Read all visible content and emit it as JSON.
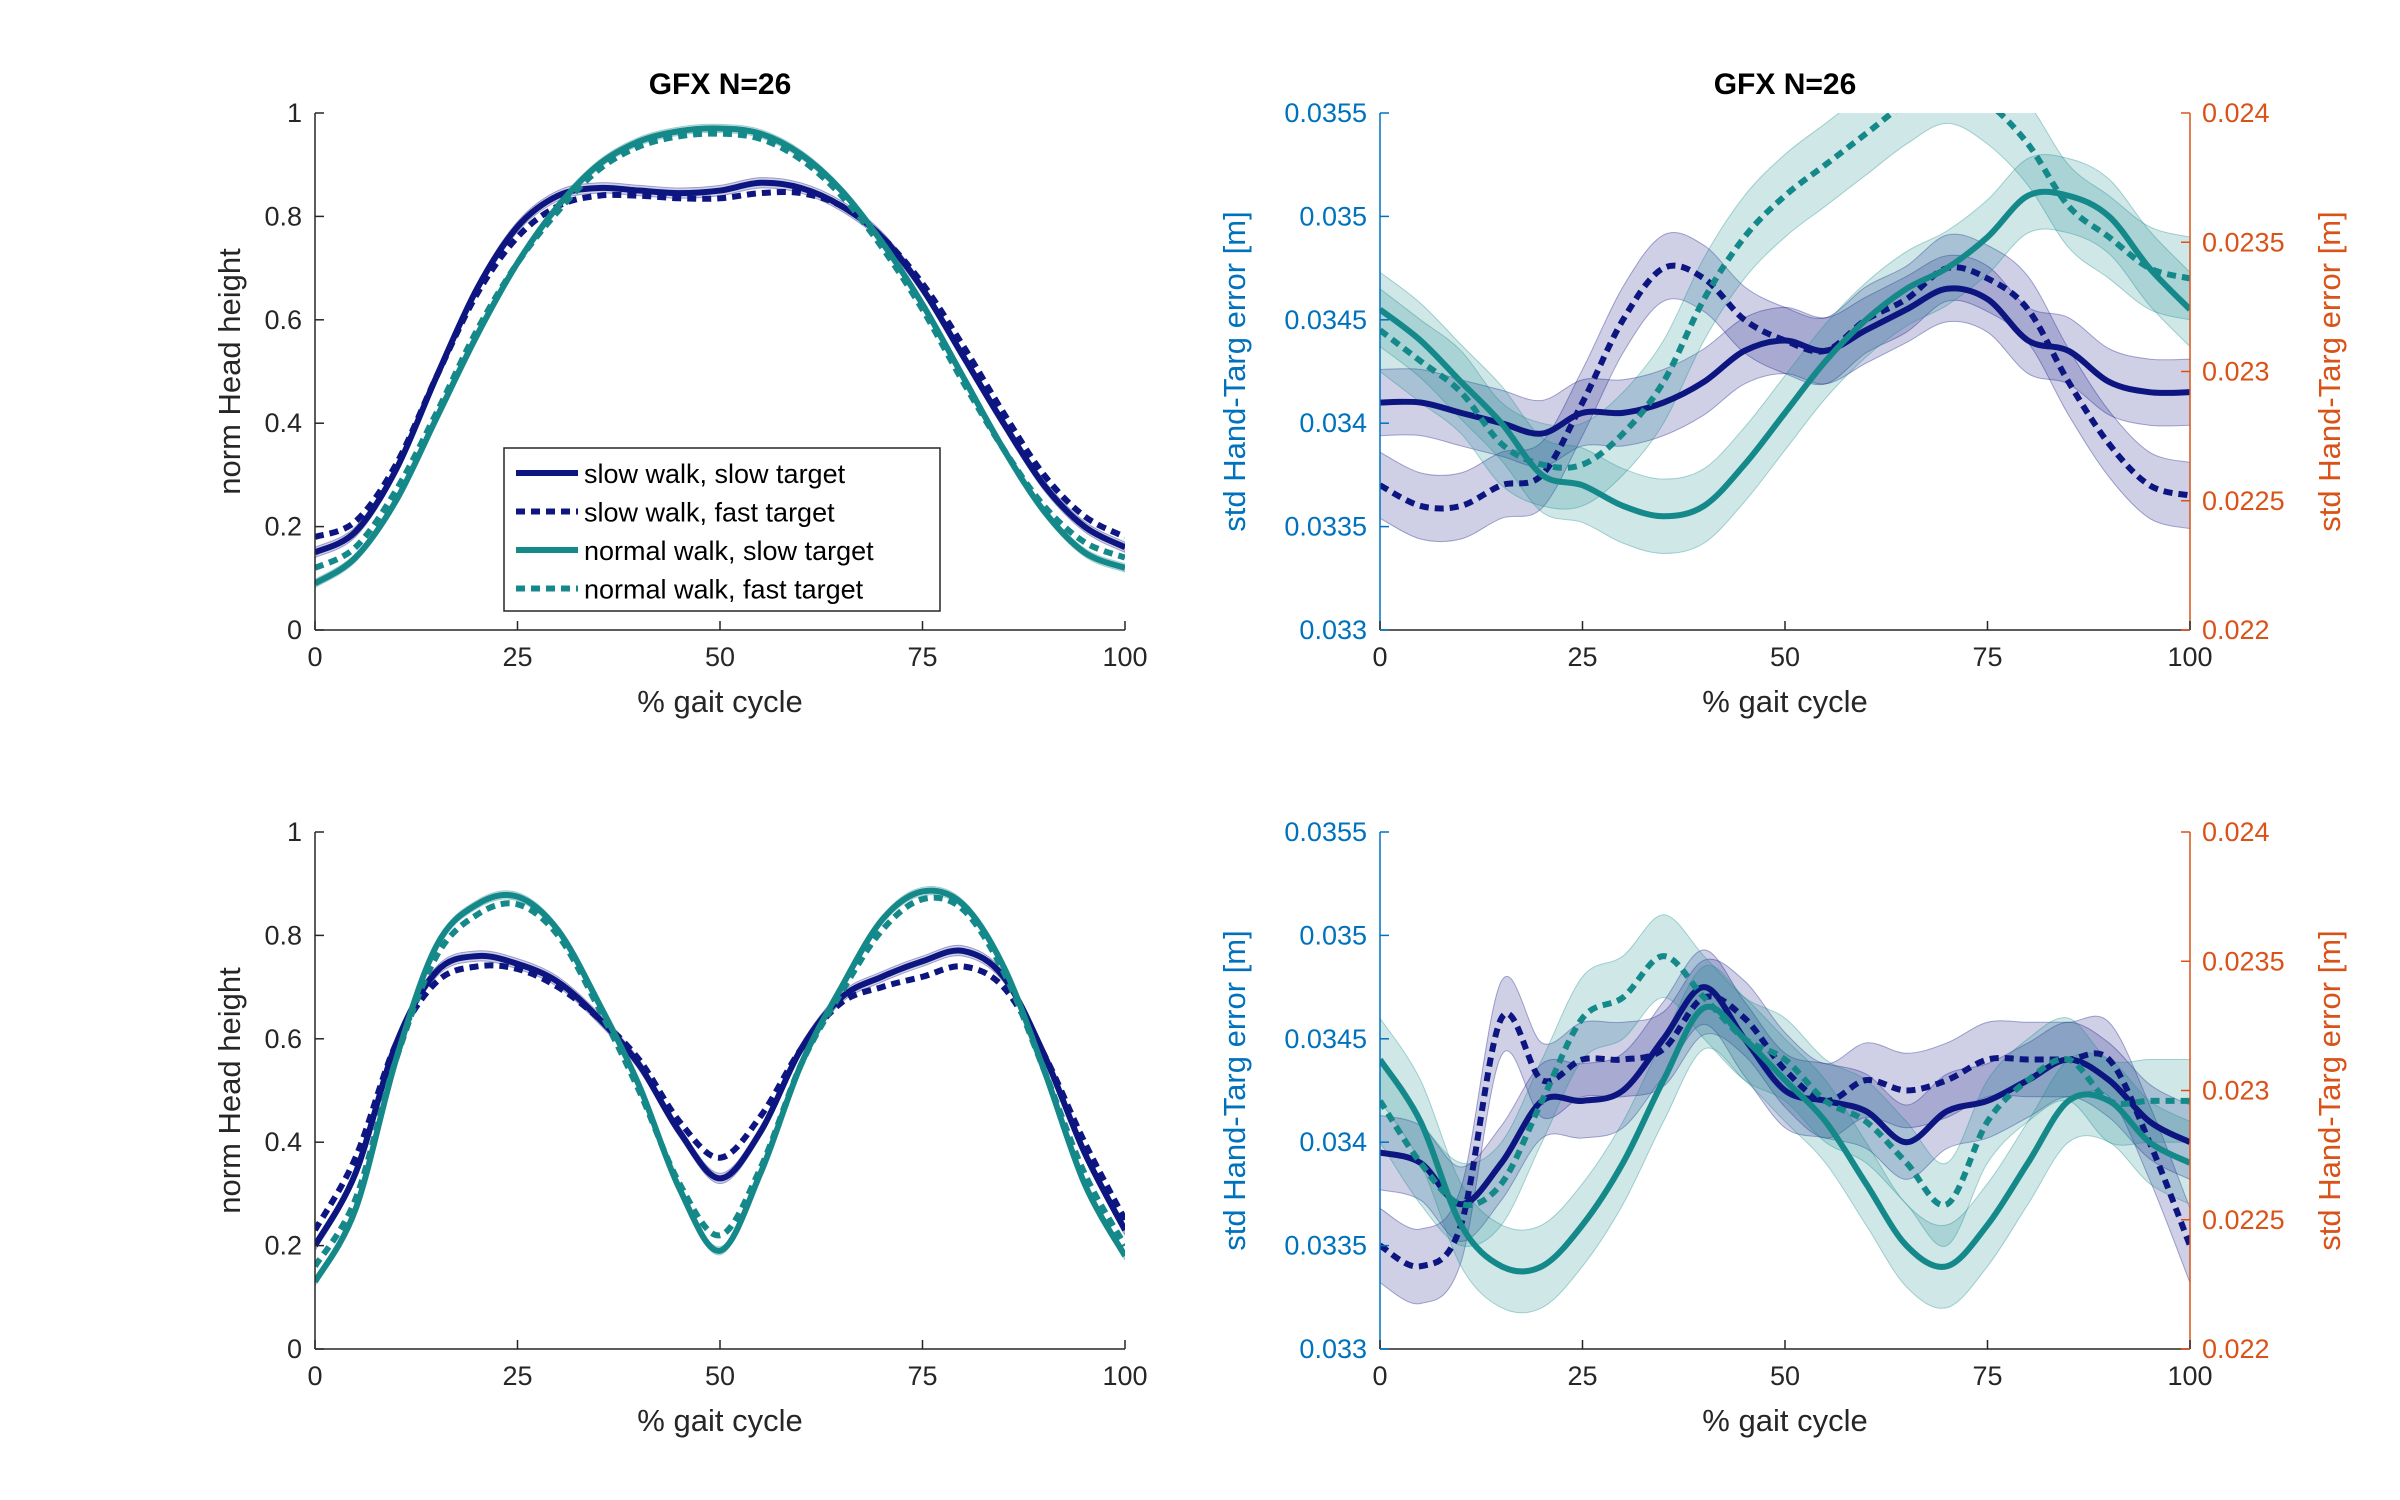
{
  "colors": {
    "slow": "#0d1580",
    "normal": "#15898a",
    "left_axis": "#0072bd",
    "right_axis": "#d95319",
    "axis": "#262626"
  },
  "legend": {
    "location": "inside-lower-center",
    "entries": [
      {
        "label": "slow walk, slow target",
        "series": "slow",
        "dashed": false
      },
      {
        "label": "slow walk, fast target",
        "series": "slow",
        "dashed": true
      },
      {
        "label": "normal walk, slow target",
        "series": "normal",
        "dashed": false
      },
      {
        "label": "normal walk, fast target",
        "series": "normal",
        "dashed": true
      }
    ]
  },
  "chart_data": [
    {
      "type": "line",
      "title": "GFX N=26",
      "xlabel": "% gait cycle",
      "ylabel": "norm Head height",
      "xlim": [
        0,
        100
      ],
      "ylim": [
        0,
        1
      ],
      "xticks": [
        "0",
        "25",
        "50",
        "75",
        "100"
      ],
      "yticks": [
        "0",
        "0.2",
        "0.4",
        "0.6",
        "0.8",
        "1"
      ],
      "grid": false,
      "series": [
        {
          "name": "slow walk, slow target",
          "color": "#0d1580",
          "dashed": false,
          "band": 0.01,
          "x": [
            0,
            5,
            10,
            15,
            20,
            25,
            30,
            35,
            40,
            45,
            50,
            55,
            60,
            65,
            70,
            75,
            80,
            85,
            90,
            95,
            100
          ],
          "y": [
            0.15,
            0.19,
            0.31,
            0.49,
            0.66,
            0.78,
            0.84,
            0.855,
            0.85,
            0.845,
            0.85,
            0.865,
            0.855,
            0.82,
            0.76,
            0.66,
            0.53,
            0.4,
            0.28,
            0.2,
            0.16
          ]
        },
        {
          "name": "slow walk, fast target",
          "color": "#0d1580",
          "dashed": true,
          "band": 0.0,
          "x": [
            0,
            5,
            10,
            15,
            20,
            25,
            30,
            35,
            40,
            45,
            50,
            55,
            60,
            65,
            70,
            75,
            80,
            85,
            90,
            95,
            100
          ],
          "y": [
            0.18,
            0.21,
            0.32,
            0.49,
            0.65,
            0.76,
            0.82,
            0.84,
            0.84,
            0.835,
            0.835,
            0.845,
            0.845,
            0.82,
            0.76,
            0.67,
            0.55,
            0.42,
            0.3,
            0.22,
            0.18
          ]
        },
        {
          "name": "normal walk, slow target",
          "color": "#15898a",
          "dashed": false,
          "band": 0.008,
          "x": [
            0,
            5,
            10,
            15,
            20,
            25,
            30,
            35,
            40,
            45,
            50,
            55,
            60,
            65,
            70,
            75,
            80,
            85,
            90,
            95,
            100
          ],
          "y": [
            0.09,
            0.14,
            0.25,
            0.41,
            0.57,
            0.71,
            0.82,
            0.9,
            0.945,
            0.965,
            0.97,
            0.96,
            0.92,
            0.85,
            0.75,
            0.63,
            0.49,
            0.35,
            0.23,
            0.15,
            0.12
          ]
        },
        {
          "name": "normal walk, fast target",
          "color": "#15898a",
          "dashed": true,
          "band": 0.0,
          "x": [
            0,
            5,
            10,
            15,
            20,
            25,
            30,
            35,
            40,
            45,
            50,
            55,
            60,
            65,
            70,
            75,
            80,
            85,
            90,
            95,
            100
          ],
          "y": [
            0.12,
            0.16,
            0.27,
            0.42,
            0.58,
            0.71,
            0.81,
            0.89,
            0.935,
            0.955,
            0.96,
            0.95,
            0.91,
            0.84,
            0.74,
            0.62,
            0.48,
            0.35,
            0.24,
            0.17,
            0.14
          ]
        }
      ]
    },
    {
      "type": "line",
      "title": "GFX N=26",
      "xlabel": "% gait cycle",
      "ylabel": "std Hand-Targ error [m]",
      "ylabel_right": "std Hand-Targ error [m]",
      "xlim": [
        0,
        100
      ],
      "ylim": [
        0.033,
        0.0355
      ],
      "ylim_right": [
        0.022,
        0.024
      ],
      "xticks": [
        "0",
        "25",
        "50",
        "75",
        "100"
      ],
      "yticks": [
        "0.033",
        "0.0335",
        "0.034",
        "0.0345",
        "0.035",
        "0.0355"
      ],
      "yticks_right": [
        "0.022",
        "0.0225",
        "0.023",
        "0.0235",
        "0.024"
      ],
      "grid": false,
      "series": [
        {
          "name": "slow walk, slow target",
          "color": "#0d1580",
          "dashed": false,
          "band": 0.00016,
          "x": [
            0,
            5,
            10,
            15,
            20,
            25,
            30,
            35,
            40,
            45,
            50,
            55,
            60,
            65,
            70,
            75,
            80,
            85,
            90,
            95,
            100
          ],
          "y": [
            0.0341,
            0.0341,
            0.03405,
            0.034,
            0.03395,
            0.03405,
            0.03405,
            0.0341,
            0.0342,
            0.03435,
            0.0344,
            0.03435,
            0.03445,
            0.03455,
            0.03465,
            0.0346,
            0.0344,
            0.03435,
            0.0342,
            0.03415,
            0.03415
          ]
        },
        {
          "name": "slow walk, fast target",
          "color": "#0d1580",
          "dashed": true,
          "band": 0.00016,
          "x": [
            0,
            5,
            10,
            15,
            20,
            25,
            30,
            35,
            40,
            45,
            50,
            55,
            60,
            65,
            70,
            75,
            80,
            85,
            90,
            95,
            100
          ],
          "y": [
            0.0337,
            0.0336,
            0.0336,
            0.0337,
            0.03375,
            0.0341,
            0.0345,
            0.03475,
            0.0347,
            0.0345,
            0.0344,
            0.03435,
            0.0345,
            0.0346,
            0.03475,
            0.0347,
            0.03455,
            0.0342,
            0.0339,
            0.0337,
            0.03365
          ]
        },
        {
          "name": "normal walk, slow target",
          "color": "#15898a",
          "dashed": false,
          "band": 0.00018,
          "x": [
            0,
            5,
            10,
            15,
            20,
            25,
            30,
            35,
            40,
            45,
            50,
            55,
            60,
            65,
            70,
            75,
            80,
            85,
            90,
            95,
            100
          ],
          "y": [
            0.03455,
            0.0344,
            0.0342,
            0.034,
            0.03375,
            0.0337,
            0.0336,
            0.03355,
            0.0336,
            0.0338,
            0.03405,
            0.0343,
            0.0345,
            0.03465,
            0.03475,
            0.0349,
            0.0351,
            0.0351,
            0.035,
            0.03475,
            0.03455
          ]
        },
        {
          "name": "normal walk, fast target",
          "color": "#15898a",
          "dashed": true,
          "band": 0.0002,
          "x": [
            0,
            5,
            10,
            15,
            20,
            25,
            30,
            35,
            40,
            45,
            50,
            55,
            60,
            65,
            70,
            75,
            80,
            85,
            90,
            95,
            100
          ],
          "y": [
            0.03445,
            0.0343,
            0.03415,
            0.0339,
            0.0338,
            0.0338,
            0.03395,
            0.0342,
            0.0346,
            0.0349,
            0.0351,
            0.03525,
            0.0354,
            0.03555,
            0.03565,
            0.03555,
            0.03535,
            0.03505,
            0.0349,
            0.03475,
            0.0347
          ]
        }
      ]
    },
    {
      "type": "line",
      "title": "",
      "xlabel": "% gait cycle",
      "ylabel": "norm Head height",
      "xlim": [
        0,
        100
      ],
      "ylim": [
        0,
        1
      ],
      "xticks": [
        "0",
        "25",
        "50",
        "75",
        "100"
      ],
      "yticks": [
        "0",
        "0.2",
        "0.4",
        "0.6",
        "0.8",
        "1"
      ],
      "grid": false,
      "series": [
        {
          "name": "slow walk, slow target",
          "color": "#0d1580",
          "dashed": false,
          "band": 0.01,
          "x": [
            0,
            5,
            10,
            15,
            20,
            25,
            30,
            35,
            40,
            45,
            50,
            55,
            60,
            65,
            70,
            75,
            80,
            85,
            90,
            95,
            100
          ],
          "y": [
            0.2,
            0.34,
            0.59,
            0.73,
            0.76,
            0.745,
            0.71,
            0.64,
            0.55,
            0.42,
            0.33,
            0.42,
            0.58,
            0.68,
            0.72,
            0.75,
            0.77,
            0.72,
            0.57,
            0.38,
            0.23
          ]
        },
        {
          "name": "slow walk, fast target",
          "color": "#0d1580",
          "dashed": true,
          "band": 0.0,
          "x": [
            0,
            5,
            10,
            15,
            20,
            25,
            30,
            35,
            40,
            45,
            50,
            55,
            60,
            65,
            70,
            75,
            80,
            85,
            90,
            95,
            100
          ],
          "y": [
            0.23,
            0.37,
            0.59,
            0.71,
            0.74,
            0.735,
            0.7,
            0.64,
            0.56,
            0.44,
            0.37,
            0.45,
            0.58,
            0.67,
            0.7,
            0.72,
            0.74,
            0.7,
            0.57,
            0.4,
            0.25
          ]
        },
        {
          "name": "normal walk, slow target",
          "color": "#15898a",
          "dashed": false,
          "band": 0.008,
          "x": [
            0,
            5,
            10,
            15,
            20,
            25,
            30,
            35,
            40,
            45,
            50,
            55,
            60,
            65,
            70,
            75,
            80,
            85,
            90,
            95,
            100
          ],
          "y": [
            0.13,
            0.27,
            0.56,
            0.78,
            0.86,
            0.875,
            0.81,
            0.67,
            0.51,
            0.31,
            0.19,
            0.34,
            0.55,
            0.7,
            0.83,
            0.885,
            0.86,
            0.74,
            0.54,
            0.32,
            0.18
          ]
        },
        {
          "name": "normal walk, fast target",
          "color": "#15898a",
          "dashed": true,
          "band": 0.0,
          "x": [
            0,
            5,
            10,
            15,
            20,
            25,
            30,
            35,
            40,
            45,
            50,
            55,
            60,
            65,
            70,
            75,
            80,
            85,
            90,
            95,
            100
          ],
          "y": [
            0.16,
            0.29,
            0.56,
            0.76,
            0.84,
            0.86,
            0.8,
            0.66,
            0.5,
            0.32,
            0.22,
            0.35,
            0.55,
            0.69,
            0.81,
            0.87,
            0.85,
            0.73,
            0.54,
            0.34,
            0.2
          ]
        }
      ]
    },
    {
      "type": "line",
      "title": "",
      "xlabel": "% gait cycle",
      "ylabel": "std Hand-Targ error [m]",
      "ylabel_right": "std Hand-Targ error [m]",
      "xlim": [
        0,
        100
      ],
      "ylim": [
        0.033,
        0.0355
      ],
      "ylim_right": [
        0.022,
        0.024
      ],
      "xticks": [
        "0",
        "25",
        "50",
        "75",
        "100"
      ],
      "yticks": [
        "0.033",
        "0.0335",
        "0.034",
        "0.0345",
        "0.035",
        "0.0355"
      ],
      "yticks_right": [
        "0.022",
        "0.0225",
        "0.023",
        "0.0235",
        "0.024"
      ],
      "grid": false,
      "series": [
        {
          "name": "slow walk, slow target",
          "color": "#0d1580",
          "dashed": false,
          "band": 0.00018,
          "x": [
            0,
            5,
            10,
            15,
            20,
            25,
            30,
            35,
            40,
            45,
            50,
            55,
            60,
            65,
            70,
            75,
            80,
            85,
            90,
            95,
            100
          ],
          "y": [
            0.03395,
            0.0339,
            0.0337,
            0.0339,
            0.0342,
            0.0342,
            0.03425,
            0.0345,
            0.03475,
            0.0345,
            0.03425,
            0.0342,
            0.03415,
            0.034,
            0.03415,
            0.0342,
            0.0343,
            0.0344,
            0.0343,
            0.0341,
            0.034
          ]
        },
        {
          "name": "slow walk, fast target",
          "color": "#0d1580",
          "dashed": true,
          "band": 0.00018,
          "x": [
            0,
            5,
            10,
            15,
            20,
            25,
            30,
            35,
            40,
            45,
            50,
            55,
            60,
            65,
            70,
            75,
            80,
            85,
            90,
            95,
            100
          ],
          "y": [
            0.0335,
            0.0334,
            0.0336,
            0.0346,
            0.0343,
            0.0344,
            0.0344,
            0.03445,
            0.0347,
            0.0346,
            0.03435,
            0.0342,
            0.0343,
            0.03425,
            0.0343,
            0.0344,
            0.0344,
            0.0344,
            0.0344,
            0.034,
            0.0335
          ]
        },
        {
          "name": "normal walk, slow target",
          "color": "#15898a",
          "dashed": false,
          "band": 0.0002,
          "x": [
            0,
            5,
            10,
            15,
            20,
            25,
            30,
            35,
            40,
            45,
            50,
            55,
            60,
            65,
            70,
            75,
            80,
            85,
            90,
            95,
            100
          ],
          "y": [
            0.0344,
            0.0341,
            0.0336,
            0.0334,
            0.0334,
            0.0336,
            0.0339,
            0.0343,
            0.03465,
            0.0345,
            0.0343,
            0.0341,
            0.0338,
            0.0335,
            0.0334,
            0.0336,
            0.0339,
            0.0342,
            0.0342,
            0.034,
            0.0339
          ]
        },
        {
          "name": "normal walk, fast target",
          "color": "#15898a",
          "dashed": true,
          "band": 0.0002,
          "x": [
            0,
            5,
            10,
            15,
            20,
            25,
            30,
            35,
            40,
            45,
            50,
            55,
            60,
            65,
            70,
            75,
            80,
            85,
            90,
            95,
            100
          ],
          "y": [
            0.0342,
            0.0339,
            0.0337,
            0.0338,
            0.0342,
            0.0346,
            0.0347,
            0.0349,
            0.0347,
            0.0345,
            0.0344,
            0.0342,
            0.0341,
            0.0339,
            0.0337,
            0.0341,
            0.0343,
            0.0344,
            0.0342,
            0.0342,
            0.0342
          ]
        }
      ]
    }
  ]
}
